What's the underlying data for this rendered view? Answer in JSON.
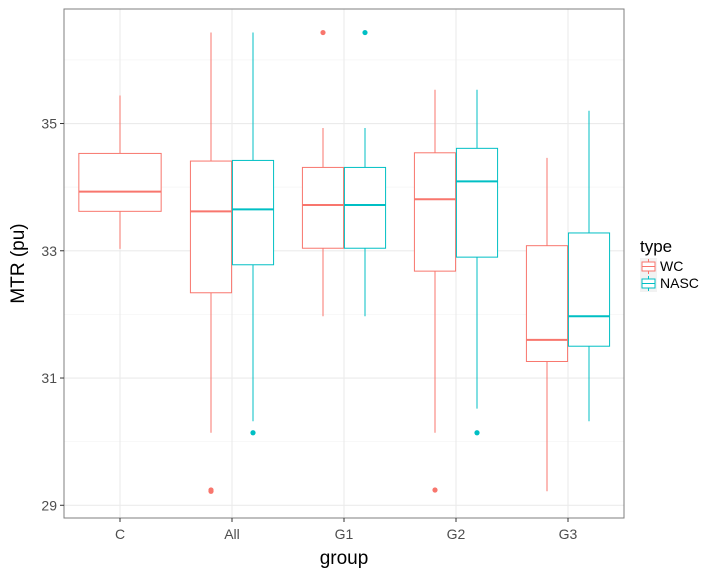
{
  "chart_data": {
    "type": "boxplot",
    "xlabel": "group",
    "ylabel": "MTR (pu)",
    "ylim": [
      28.8,
      36.8
    ],
    "yticks": [
      29,
      31,
      33,
      35
    ],
    "categories": [
      "C",
      "All",
      "G1",
      "G2",
      "G3"
    ],
    "legend": {
      "title": "type",
      "position": "right",
      "entries": [
        "WC",
        "NASC"
      ]
    },
    "colors": {
      "WC": "#F8766D",
      "NASC": "#00BFC4"
    },
    "series": [
      {
        "name": "WC",
        "boxes": [
          {
            "category": "C",
            "whisker_low": 33.03,
            "q1": 33.62,
            "median": 33.93,
            "q3": 34.53,
            "whisker_high": 35.44,
            "outliers": []
          },
          {
            "category": "All",
            "whisker_low": 30.14,
            "q1": 32.34,
            "median": 33.62,
            "q3": 34.41,
            "whisker_high": 36.43,
            "outliers": [
              29.22,
              29.24
            ]
          },
          {
            "category": "G1",
            "whisker_low": 31.97,
            "q1": 33.04,
            "median": 33.72,
            "q3": 34.31,
            "whisker_high": 34.93,
            "outliers": [
              36.43
            ]
          },
          {
            "category": "G2",
            "whisker_low": 30.14,
            "q1": 32.68,
            "median": 33.81,
            "q3": 34.54,
            "whisker_high": 35.53,
            "outliers": [
              29.24
            ]
          },
          {
            "category": "G3",
            "whisker_low": 29.22,
            "q1": 31.26,
            "median": 31.6,
            "q3": 33.08,
            "whisker_high": 34.46,
            "outliers": []
          }
        ]
      },
      {
        "name": "NASC",
        "boxes": [
          {
            "category": "All",
            "whisker_low": 30.32,
            "q1": 32.78,
            "median": 33.65,
            "q3": 34.42,
            "whisker_high": 36.43,
            "outliers": [
              30.14
            ]
          },
          {
            "category": "G1",
            "whisker_low": 31.97,
            "q1": 33.04,
            "median": 33.72,
            "q3": 34.31,
            "whisker_high": 34.93,
            "outliers": [
              36.43
            ]
          },
          {
            "category": "G2",
            "whisker_low": 30.52,
            "q1": 32.9,
            "median": 34.09,
            "q3": 34.61,
            "whisker_high": 35.53,
            "outliers": [
              30.14
            ]
          },
          {
            "category": "G3",
            "whisker_low": 30.32,
            "q1": 31.5,
            "median": 31.97,
            "q3": 33.28,
            "whisker_high": 35.2,
            "outliers": []
          }
        ]
      }
    ]
  }
}
